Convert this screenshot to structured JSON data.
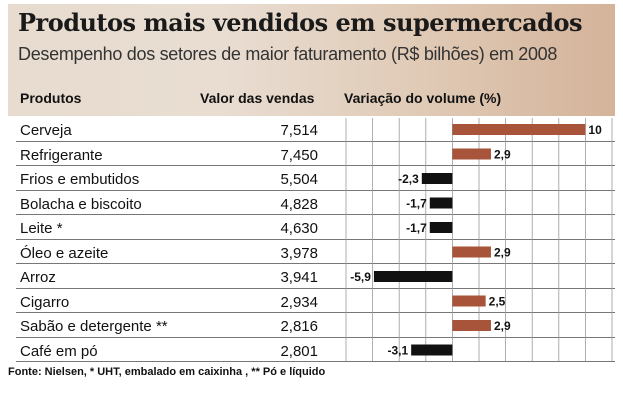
{
  "title": "Produtos mais vendidos em supermercados",
  "subtitle": "Desempenho dos setores de maior faturamento (R$ bilhões) em 2008",
  "headers": {
    "products": "Produtos",
    "sales": "Valor das vendas",
    "volume": "Variação do volume (%)"
  },
  "footer": "Fonte: Nielsen, * UHT, embalado em caixinha , ** Pó e líquido",
  "colors": {
    "positive_bar": "#a8543a",
    "negative_bar": "#111111",
    "grid": "#999999"
  },
  "chart_data": {
    "type": "table",
    "categories": [
      "Cerveja",
      "Refrigerante",
      "Frios e embutidos",
      "Bolacha e biscoito",
      "Leite *",
      "Óleo e azeite",
      "Arroz",
      "Cigarro",
      "Sabão e detergente **",
      "Café em pó"
    ],
    "sales_values": [
      "7,514",
      "7,450",
      "5,504",
      "4,828",
      "4,630",
      "3,978",
      "3,941",
      "2,934",
      "2,816",
      "2,801"
    ],
    "volume_change": [
      10,
      2.9,
      -2.3,
      -1.7,
      -1.7,
      2.9,
      -5.9,
      2.5,
      2.9,
      -3.1
    ],
    "volume_labels": [
      "10",
      "2,9",
      "-2,3",
      "-1,7",
      "-1,7",
      "2,9",
      "-5,9",
      "2,5",
      "2,9",
      "-3,1"
    ],
    "xlim": [
      -8,
      12
    ],
    "grid": true
  }
}
